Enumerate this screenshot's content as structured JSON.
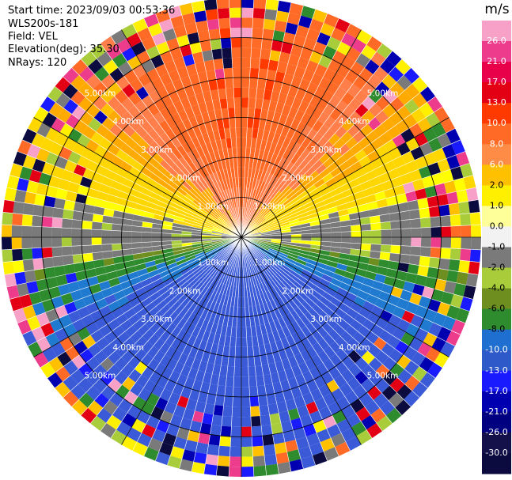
{
  "header": {
    "start_time": "Start time: 2023/09/03 00:53:36",
    "instrument": "WLS200s-181",
    "field": "Field: VEL",
    "elevation": "Elevation(deg): 35.30",
    "nrays": "NRays: 120"
  },
  "chart_data": {
    "type": "heatmap",
    "projection": "polar (PPI)",
    "field": "VEL",
    "units_label": "m/s",
    "nrays": 120,
    "max_range_km": 6.0,
    "range_rings_km": [
      1,
      2,
      3,
      4,
      5
    ],
    "range_ring_labels": [
      "1.00km",
      "2.00km",
      "3.00km",
      "4.00km",
      "5.00km"
    ],
    "spokes_deg": [
      0,
      30,
      60,
      90,
      120,
      150,
      180,
      210,
      240,
      270,
      300,
      330
    ],
    "colorbar": {
      "unit": "m/s",
      "ticks": [
        "26.0",
        "21.0",
        "17.0",
        "13.0",
        "10.0",
        "8.0",
        "6.0",
        "2.0",
        "1.0",
        "0.0",
        "-1.0",
        "-2.0",
        "-4.0",
        "-6.0",
        "-8.0",
        "-10.0",
        "-13.0",
        "-17.0",
        "-21.0",
        "-26.0",
        "-30.0"
      ],
      "colors": [
        "#f7a1c8",
        "#ee3c8d",
        "#e8004a",
        "#e40014",
        "#ff3a00",
        "#ff6a26",
        "#ff8c46",
        "#ffc000",
        "#fff000",
        "#ffff99",
        "#f2f2f2",
        "#7a7a7a",
        "#a8cc3a",
        "#6e8f20",
        "#2e8b2e",
        "#1f6fd0",
        "#2d5ac8",
        "#1a1aff",
        "#0000b0",
        "#000080",
        "#14104a",
        "#0b0b40"
      ]
    },
    "velocity_pattern": {
      "description": "Dealiased radial velocity: positive (receding) north, negative (approaching) south; zero line runs roughly east-west",
      "max_positive_ms": 13.0,
      "max_negative_ms": -10.0,
      "zero_line_azimuths_deg": [
        80,
        260
      ],
      "noisy_beyond_km": 4.0
    }
  }
}
